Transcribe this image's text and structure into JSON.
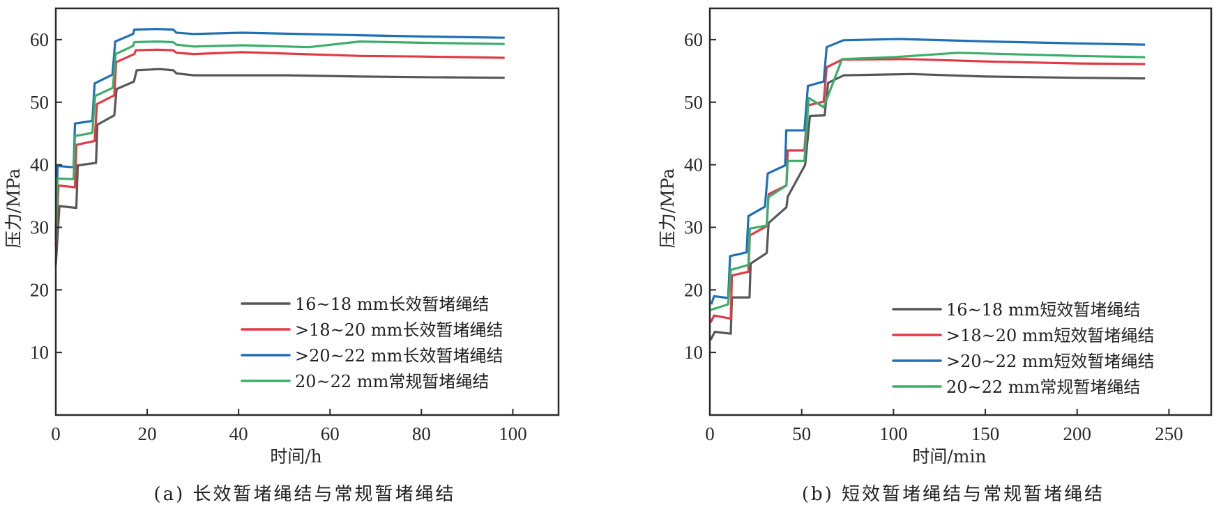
{
  "chart_data": [
    {
      "type": "line",
      "id": "a",
      "caption": "(a) 长效暂堵绳结与常规暂堵绳结",
      "xlabel": "时间/h",
      "ylabel": "压力/MPa",
      "xlim": [
        0,
        110
      ],
      "ylim": [
        0,
        65
      ],
      "xticks": [
        0,
        20,
        40,
        60,
        80,
        100
      ],
      "yticks": [
        10,
        20,
        30,
        40,
        50,
        60
      ],
      "legend_position": "bottom-right",
      "grid": false,
      "series": [
        {
          "name": "16~18 mm长效暂堵绳结",
          "color": "#555759",
          "points": [
            [
              0,
              24
            ],
            [
              0.8,
              33.4
            ],
            [
              4.5,
              33.1
            ],
            [
              4.8,
              39.9
            ],
            [
              8.8,
              40.3
            ],
            [
              9.1,
              46.4
            ],
            [
              12.8,
              47.9
            ],
            [
              13.3,
              52.1
            ],
            [
              17.1,
              53.3
            ],
            [
              17.7,
              55.1
            ],
            [
              22.7,
              55.3
            ],
            [
              25.7,
              55.1
            ],
            [
              26.4,
              54.6
            ],
            [
              30.2,
              54.3
            ],
            [
              50,
              54.3
            ],
            [
              66.5,
              54.1
            ],
            [
              80,
              54.0
            ],
            [
              98.2,
              53.9
            ]
          ]
        },
        {
          "name": ">18~20 mm长效暂堵绳结",
          "color": "#e03a45",
          "points": [
            [
              0,
              27
            ],
            [
              0.6,
              36.7
            ],
            [
              4.2,
              36.4
            ],
            [
              4.5,
              43.2
            ],
            [
              8.5,
              43.8
            ],
            [
              9.0,
              49.7
            ],
            [
              12.8,
              51.1
            ],
            [
              13.2,
              56.4
            ],
            [
              17.2,
              57.7
            ],
            [
              17.5,
              58.3
            ],
            [
              22.2,
              58.4
            ],
            [
              25.7,
              58.3
            ],
            [
              26.4,
              57.9
            ],
            [
              30.2,
              57.7
            ],
            [
              40.8,
              58.0
            ],
            [
              66.5,
              57.4
            ],
            [
              80,
              57.3
            ],
            [
              98.2,
              57.1
            ]
          ]
        },
        {
          "name": ">20~22 mm长效暂堵绳结",
          "color": "#1f6fb6",
          "points": [
            [
              0,
              29
            ],
            [
              0.4,
              39.8
            ],
            [
              3.9,
              39.6
            ],
            [
              4.2,
              46.6
            ],
            [
              8.0,
              47.0
            ],
            [
              8.5,
              53.0
            ],
            [
              12.4,
              54.4
            ],
            [
              13.0,
              59.7
            ],
            [
              16.9,
              60.9
            ],
            [
              17.2,
              61.6
            ],
            [
              22.2,
              61.7
            ],
            [
              25.7,
              61.6
            ],
            [
              26.4,
              61.1
            ],
            [
              30.2,
              60.9
            ],
            [
              40.8,
              61.1
            ],
            [
              66.5,
              60.7
            ],
            [
              80,
              60.5
            ],
            [
              98.2,
              60.3
            ]
          ]
        },
        {
          "name": "20~22 mm常规暂堵绳结",
          "color": "#3aae6a",
          "points": [
            [
              0,
              28
            ],
            [
              0.4,
              37.8
            ],
            [
              3.9,
              37.7
            ],
            [
              4.2,
              44.6
            ],
            [
              8.0,
              45.1
            ],
            [
              8.6,
              51.0
            ],
            [
              12.5,
              52.3
            ],
            [
              13.1,
              57.7
            ],
            [
              16.9,
              59.0
            ],
            [
              17.2,
              59.6
            ],
            [
              22.2,
              59.7
            ],
            [
              25.7,
              59.6
            ],
            [
              26.4,
              59.2
            ],
            [
              30.2,
              58.9
            ],
            [
              40.8,
              59.1
            ],
            [
              55.4,
              58.8
            ],
            [
              66.5,
              59.7
            ],
            [
              80,
              59.5
            ],
            [
              98.2,
              59.3
            ]
          ]
        }
      ]
    },
    {
      "type": "line",
      "id": "b",
      "caption": "(b) 短效暂堵绳结与常规暂堵绳结",
      "xlabel": "时间/min",
      "ylabel": "压力/MPa",
      "xlim": [
        0,
        273
      ],
      "ylim": [
        0,
        65
      ],
      "xticks": [
        0,
        50,
        100,
        150,
        200,
        250
      ],
      "yticks": [
        10,
        20,
        30,
        40,
        50,
        60
      ],
      "legend_position": "bottom-right",
      "grid": false,
      "series": [
        {
          "name": "16~18 mm短效暂堵绳结",
          "color": "#555759",
          "points": [
            [
              0.4,
              12.0
            ],
            [
              2.7,
              13.3
            ],
            [
              11.4,
              13.0
            ],
            [
              12,
              18.8
            ],
            [
              21.6,
              18.8
            ],
            [
              22.2,
              24.2
            ],
            [
              31,
              25.9
            ],
            [
              32,
              30.7
            ],
            [
              41.7,
              33.2
            ],
            [
              42.4,
              34.9
            ],
            [
              51.9,
              40.0
            ],
            [
              54.5,
              47.8
            ],
            [
              62.5,
              47.9
            ],
            [
              64.4,
              53.1
            ],
            [
              73,
              54.3
            ],
            [
              110,
              54.5
            ],
            [
              150,
              54.1
            ],
            [
              200,
              53.9
            ],
            [
              237,
              53.8
            ]
          ]
        },
        {
          "name": ">18~20 mm短效暂堵绳结",
          "color": "#e03a45",
          "points": [
            [
              0.4,
              14.8
            ],
            [
              2.3,
              15.9
            ],
            [
              11.4,
              15.4
            ],
            [
              12,
              22.3
            ],
            [
              21,
              22.9
            ],
            [
              21.8,
              28.7
            ],
            [
              31,
              30.2
            ],
            [
              32,
              35.3
            ],
            [
              41.7,
              36.7
            ],
            [
              42.4,
              42.3
            ],
            [
              51.5,
              42.3
            ],
            [
              53.4,
              49.5
            ],
            [
              62,
              50.1
            ],
            [
              63.6,
              55.6
            ],
            [
              72,
              56.8
            ],
            [
              107,
              56.9
            ],
            [
              152,
              56.5
            ],
            [
              200,
              56.2
            ],
            [
              237,
              56.1
            ]
          ]
        },
        {
          "name": ">20~22 mm短效暂堵绳结",
          "color": "#1f6fb6",
          "points": [
            [
              0.8,
              17.7
            ],
            [
              2.3,
              19.0
            ],
            [
              10,
              18.7
            ],
            [
              11,
              25.4
            ],
            [
              20,
              26.0
            ],
            [
              21,
              31.8
            ],
            [
              30,
              33.3
            ],
            [
              31.5,
              38.6
            ],
            [
              41,
              39.9
            ],
            [
              41.6,
              45.5
            ],
            [
              51.5,
              45.5
            ],
            [
              53.4,
              52.6
            ],
            [
              62,
              53.3
            ],
            [
              63.6,
              58.8
            ],
            [
              72.7,
              59.9
            ],
            [
              103,
              60.1
            ],
            [
              152,
              59.7
            ],
            [
              200,
              59.4
            ],
            [
              237,
              59.2
            ]
          ]
        },
        {
          "name": "20~22 mm常规暂堵绳结",
          "color": "#3aae6a",
          "points": [
            [
              0.4,
              16.8
            ],
            [
              10,
              17.7
            ],
            [
              11.4,
              23.2
            ],
            [
              21,
              24.0
            ],
            [
              21.8,
              29.8
            ],
            [
              31,
              30.3
            ],
            [
              31.8,
              34.8
            ],
            [
              41.7,
              36.7
            ],
            [
              42.4,
              40.6
            ],
            [
              51.5,
              40.6
            ],
            [
              53.8,
              50.7
            ],
            [
              62,
              49.2
            ],
            [
              72,
              56.9
            ],
            [
              100,
              57.2
            ],
            [
              135,
              57.9
            ],
            [
              200,
              57.4
            ],
            [
              237,
              57.2
            ]
          ]
        }
      ]
    }
  ]
}
